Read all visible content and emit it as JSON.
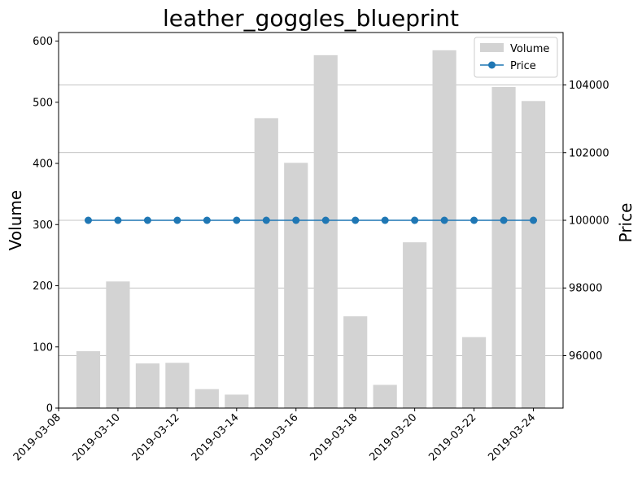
{
  "chart_data": {
    "type": "bar",
    "title": "leather_goggles_blueprint",
    "xlabel": "",
    "ylabel": "Volume",
    "y2label": "Price",
    "x": [
      "2019-03-09",
      "2019-03-10",
      "2019-03-11",
      "2019-03-12",
      "2019-03-13",
      "2019-03-14",
      "2019-03-15",
      "2019-03-16",
      "2019-03-17",
      "2019-03-18",
      "2019-03-19",
      "2019-03-20",
      "2019-03-21",
      "2019-03-22",
      "2019-03-23",
      "2019-03-24"
    ],
    "x_ticks": [
      "2019-03-08",
      "2019-03-10",
      "2019-03-12",
      "2019-03-14",
      "2019-03-16",
      "2019-03-18",
      "2019-03-20",
      "2019-03-22",
      "2019-03-24"
    ],
    "xlim": [
      "2019-03-08",
      "2019-03-25"
    ],
    "ylim": [
      0,
      614
    ],
    "y_ticks": [
      0,
      100,
      200,
      300,
      400,
      500,
      600
    ],
    "y2lim": [
      94450,
      105550
    ],
    "y2_ticks": [
      96000,
      98000,
      100000,
      102000,
      104000
    ],
    "series": [
      {
        "name": "Volume",
        "kind": "bar",
        "color": "#d3d3d3",
        "values": [
          93,
          207,
          73,
          74,
          31,
          22,
          474,
          401,
          577,
          150,
          38,
          271,
          585,
          116,
          525,
          502
        ]
      },
      {
        "name": "Price",
        "kind": "line",
        "axis": "right",
        "color": "#1f77b4",
        "values": [
          100000,
          100000,
          100000,
          100000,
          100000,
          100000,
          100000,
          100000,
          100000,
          100000,
          100000,
          100000,
          100000,
          100000,
          100000,
          100000
        ]
      }
    ],
    "grid": "right-axis horizontal",
    "legend": "top-right"
  }
}
